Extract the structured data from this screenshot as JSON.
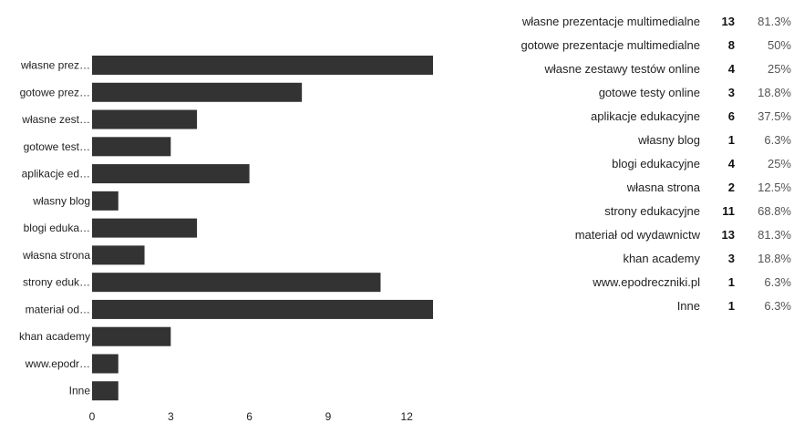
{
  "chart_data": {
    "type": "bar",
    "orientation": "horizontal",
    "categories": [
      "własne prezentacje multimedialne",
      "gotowe prezentacje multimedialne",
      "własne zestawy testów online",
      "gotowe testy online",
      "aplikacje edukacyjne",
      "własny blog",
      "blogi edukacyjne",
      "własna strona",
      "strony edukacyjne",
      "materiał od wydawnictw",
      "khan academy",
      "www.epodreczniki.pl",
      "Inne"
    ],
    "axis_labels": [
      "własne prez…",
      "gotowe prez…",
      "własne zest…",
      "gotowe test…",
      "aplikacje ed…",
      "własny blog",
      "blogi eduka…",
      "własna strona",
      "strony eduk…",
      "materiał od…",
      "khan academy",
      "www.epodr…",
      "Inne"
    ],
    "values": [
      13,
      8,
      4,
      3,
      6,
      1,
      4,
      2,
      11,
      13,
      3,
      1,
      1
    ],
    "percentages": [
      "81.3%",
      "50%",
      "25%",
      "18.8%",
      "37.5%",
      "6.3%",
      "25%",
      "12.5%",
      "68.8%",
      "81.3%",
      "18.8%",
      "6.3%",
      "6.3%"
    ],
    "xlim": [
      0,
      13
    ],
    "xticks": [
      0,
      3,
      6,
      9,
      12
    ],
    "xtick_labels": [
      "0",
      "3",
      "6",
      "9",
      "12"
    ],
    "grid": false,
    "legend": "none",
    "bar_color": "#333333"
  }
}
